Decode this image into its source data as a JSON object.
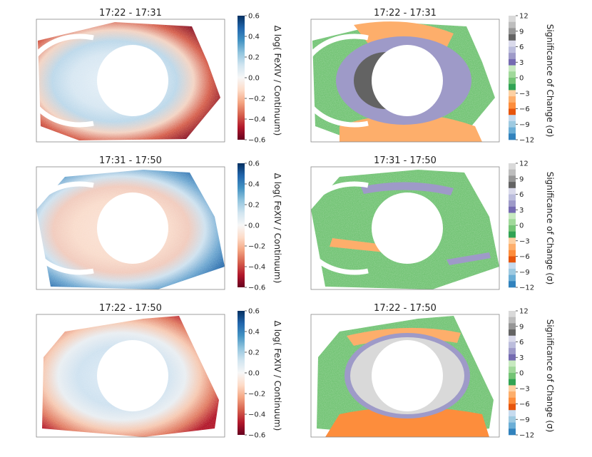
{
  "chart_data": [
    {
      "type": "heatmap",
      "panel": "top-left",
      "title": "17:22 - 17:31",
      "colorbar": {
        "label": "Δ log( FeXIV / Continuum)",
        "colormap": "RdBu",
        "range": [
          -0.6,
          0.6
        ],
        "ticks": [
          "0.6",
          "0.4",
          "0.2",
          "0.0",
          "−0.2",
          "−0.4",
          "−0.6"
        ]
      },
      "pattern": "blue-inner-red-outer"
    },
    {
      "type": "heatmap",
      "panel": "top-right",
      "title": "17:22 - 17:31",
      "colorbar": {
        "label": "Significance of Change (σ)",
        "colormap": "tab20c",
        "range": [
          -12,
          12
        ],
        "ticks": [
          "12",
          "9",
          "6",
          "3",
          "0",
          "−3",
          "−6",
          "−9",
          "−12"
        ]
      },
      "pattern": "purple-inner-green-orange-outer"
    },
    {
      "type": "heatmap",
      "panel": "middle-left",
      "title": "17:31 - 17:50",
      "colorbar": {
        "label": "Δ log( FeXIV / Continuum)",
        "colormap": "RdBu",
        "range": [
          -0.6,
          0.6
        ],
        "ticks": [
          "0.6",
          "0.4",
          "0.2",
          "0.0",
          "−0.2",
          "−0.4",
          "−0.6"
        ]
      },
      "pattern": "red-inner-blue-outer"
    },
    {
      "type": "heatmap",
      "panel": "middle-right",
      "title": "17:31 - 17:50",
      "colorbar": {
        "label": "Significance of Change (σ)",
        "colormap": "tab20c",
        "range": [
          -12,
          12
        ],
        "ticks": [
          "12",
          "9",
          "6",
          "3",
          "0",
          "−3",
          "−6",
          "−9",
          "−12"
        ]
      },
      "pattern": "green-dominant"
    },
    {
      "type": "heatmap",
      "panel": "bottom-left",
      "title": "17:22 - 17:50",
      "colorbar": {
        "label": "Δ log( FeXIV / Continuum)",
        "colormap": "RdBu",
        "range": [
          -0.6,
          0.6
        ],
        "ticks": [
          "0.6",
          "0.4",
          "0.2",
          "0.0",
          "−0.2",
          "−0.4",
          "−0.6"
        ]
      },
      "pattern": "light-blue-inner-red-outer"
    },
    {
      "type": "heatmap",
      "panel": "bottom-right",
      "title": "17:22 - 17:50",
      "colorbar": {
        "label": "Significance of Change (σ)",
        "colormap": "tab20c",
        "range": [
          -12,
          12
        ],
        "ticks": [
          "12",
          "9",
          "6",
          "3",
          "0",
          "−3",
          "−6",
          "−9",
          "−12"
        ]
      },
      "pattern": "gray-inner-purple-ring-green-orange-outer"
    }
  ],
  "colors": {
    "rdbu": [
      "#67001f",
      "#b2182b",
      "#d6604d",
      "#f4a582",
      "#fddbc7",
      "#f7f7f7",
      "#d1e5f0",
      "#92c5de",
      "#4393c3",
      "#2166ac",
      "#053061"
    ],
    "sigma_bins": [
      "#3182bd",
      "#6baed6",
      "#9ecae1",
      "#c6dbef",
      "#e6550d",
      "#fd8d3c",
      "#fdae6b",
      "#fdd0a2",
      "#31a354",
      "#74c476",
      "#a1d99b",
      "#c7e9c0",
      "#756bb1",
      "#9e9ac8",
      "#bcbddc",
      "#dadaeb",
      "#636363",
      "#969696",
      "#bdbdbd",
      "#d9d9d9"
    ]
  }
}
